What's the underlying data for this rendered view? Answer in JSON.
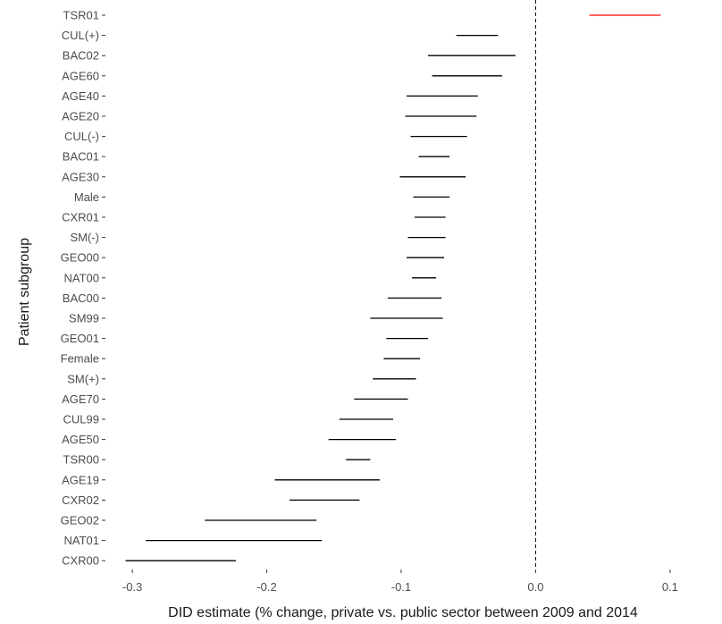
{
  "chart_data": {
    "type": "forest",
    "title": "",
    "xlabel": "DID estimate (% change, private vs. public sector between 2009 and 2014",
    "ylabel": "Patient subgroup",
    "xlim": [
      -0.32,
      0.13
    ],
    "xticks": [
      -0.3,
      -0.2,
      -0.1,
      0.0,
      0.1
    ],
    "xtick_labels": [
      "-0.3",
      "-0.2",
      "-0.1",
      "0.0",
      "0.1"
    ],
    "reference_line": 0,
    "grid": false,
    "colors": {
      "default": "#000000",
      "highlight": "#ff0000"
    },
    "series": [
      {
        "label": "TSR01",
        "lower": 0.04,
        "upper": 0.093,
        "color": "#ff0000"
      },
      {
        "label": "CUL(+)",
        "lower": -0.059,
        "upper": -0.028,
        "color": "#000000"
      },
      {
        "label": "BAC02",
        "lower": -0.08,
        "upper": -0.015,
        "color": "#000000"
      },
      {
        "label": "AGE60",
        "lower": -0.077,
        "upper": -0.025,
        "color": "#000000"
      },
      {
        "label": "AGE40",
        "lower": -0.096,
        "upper": -0.043,
        "color": "#000000"
      },
      {
        "label": "AGE20",
        "lower": -0.097,
        "upper": -0.044,
        "color": "#000000"
      },
      {
        "label": "CUL(-)",
        "lower": -0.093,
        "upper": -0.051,
        "color": "#000000"
      },
      {
        "label": "BAC01",
        "lower": -0.087,
        "upper": -0.064,
        "color": "#000000"
      },
      {
        "label": "AGE30",
        "lower": -0.101,
        "upper": -0.052,
        "color": "#000000"
      },
      {
        "label": "Male",
        "lower": -0.091,
        "upper": -0.064,
        "color": "#000000"
      },
      {
        "label": "CXR01",
        "lower": -0.09,
        "upper": -0.067,
        "color": "#000000"
      },
      {
        "label": "SM(-)",
        "lower": -0.095,
        "upper": -0.067,
        "color": "#000000"
      },
      {
        "label": "GEO00",
        "lower": -0.096,
        "upper": -0.068,
        "color": "#000000"
      },
      {
        "label": "NAT00",
        "lower": -0.092,
        "upper": -0.074,
        "color": "#000000"
      },
      {
        "label": "BAC00",
        "lower": -0.11,
        "upper": -0.07,
        "color": "#000000"
      },
      {
        "label": "SM99",
        "lower": -0.123,
        "upper": -0.069,
        "color": "#000000"
      },
      {
        "label": "GEO01",
        "lower": -0.111,
        "upper": -0.08,
        "color": "#000000"
      },
      {
        "label": "Female",
        "lower": -0.113,
        "upper": -0.086,
        "color": "#000000"
      },
      {
        "label": "SM(+)",
        "lower": -0.121,
        "upper": -0.089,
        "color": "#000000"
      },
      {
        "label": "AGE70",
        "lower": -0.135,
        "upper": -0.095,
        "color": "#000000"
      },
      {
        "label": "CUL99",
        "lower": -0.146,
        "upper": -0.106,
        "color": "#000000"
      },
      {
        "label": "AGE50",
        "lower": -0.154,
        "upper": -0.104,
        "color": "#000000"
      },
      {
        "label": "TSR00",
        "lower": -0.141,
        "upper": -0.123,
        "color": "#000000"
      },
      {
        "label": "AGE19",
        "lower": -0.194,
        "upper": -0.116,
        "color": "#000000"
      },
      {
        "label": "CXR02",
        "lower": -0.183,
        "upper": -0.131,
        "color": "#000000"
      },
      {
        "label": "GEO02",
        "lower": -0.246,
        "upper": -0.163,
        "color": "#000000"
      },
      {
        "label": "NAT01",
        "lower": -0.29,
        "upper": -0.159,
        "color": "#000000"
      },
      {
        "label": "CXR00",
        "lower": -0.305,
        "upper": -0.223,
        "color": "#000000"
      }
    ]
  }
}
